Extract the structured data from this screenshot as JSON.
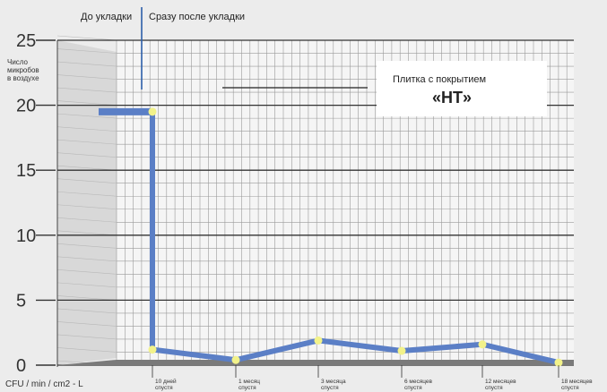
{
  "chart_data": {
    "type": "line",
    "ylabel": "Число микробов в воздухе",
    "yunit": "CFU / min / cm2 - L",
    "ylim": [
      0,
      25
    ],
    "yticks": [
      "0",
      "5",
      "10",
      "15",
      "20",
      "25"
    ],
    "before_label": "До укладки",
    "after_label": "Сразу после укладки",
    "legend": {
      "line1": "Плитка с покрытием",
      "line2": "«HT»"
    },
    "categories": [
      [
        "10 дней",
        "спустя"
      ],
      [
        "1 месяц",
        "спустя"
      ],
      [
        "3 месяца",
        "спустя"
      ],
      [
        "6 месяцев",
        "спустя"
      ],
      [
        "12 месяцев",
        "спустя"
      ],
      [
        "18 месяцев",
        "спустя"
      ]
    ],
    "before_value": 19.5,
    "series": [
      {
        "values": [
          1.2,
          0.4,
          1.9,
          1.1,
          1.6,
          0.2
        ]
      }
    ],
    "grid": true,
    "colors": {
      "line": "#5b7fc6",
      "marker": "#f2f28a",
      "grid": "#9a9a9a",
      "major_grid": "#333333",
      "background": "#ececec"
    }
  }
}
